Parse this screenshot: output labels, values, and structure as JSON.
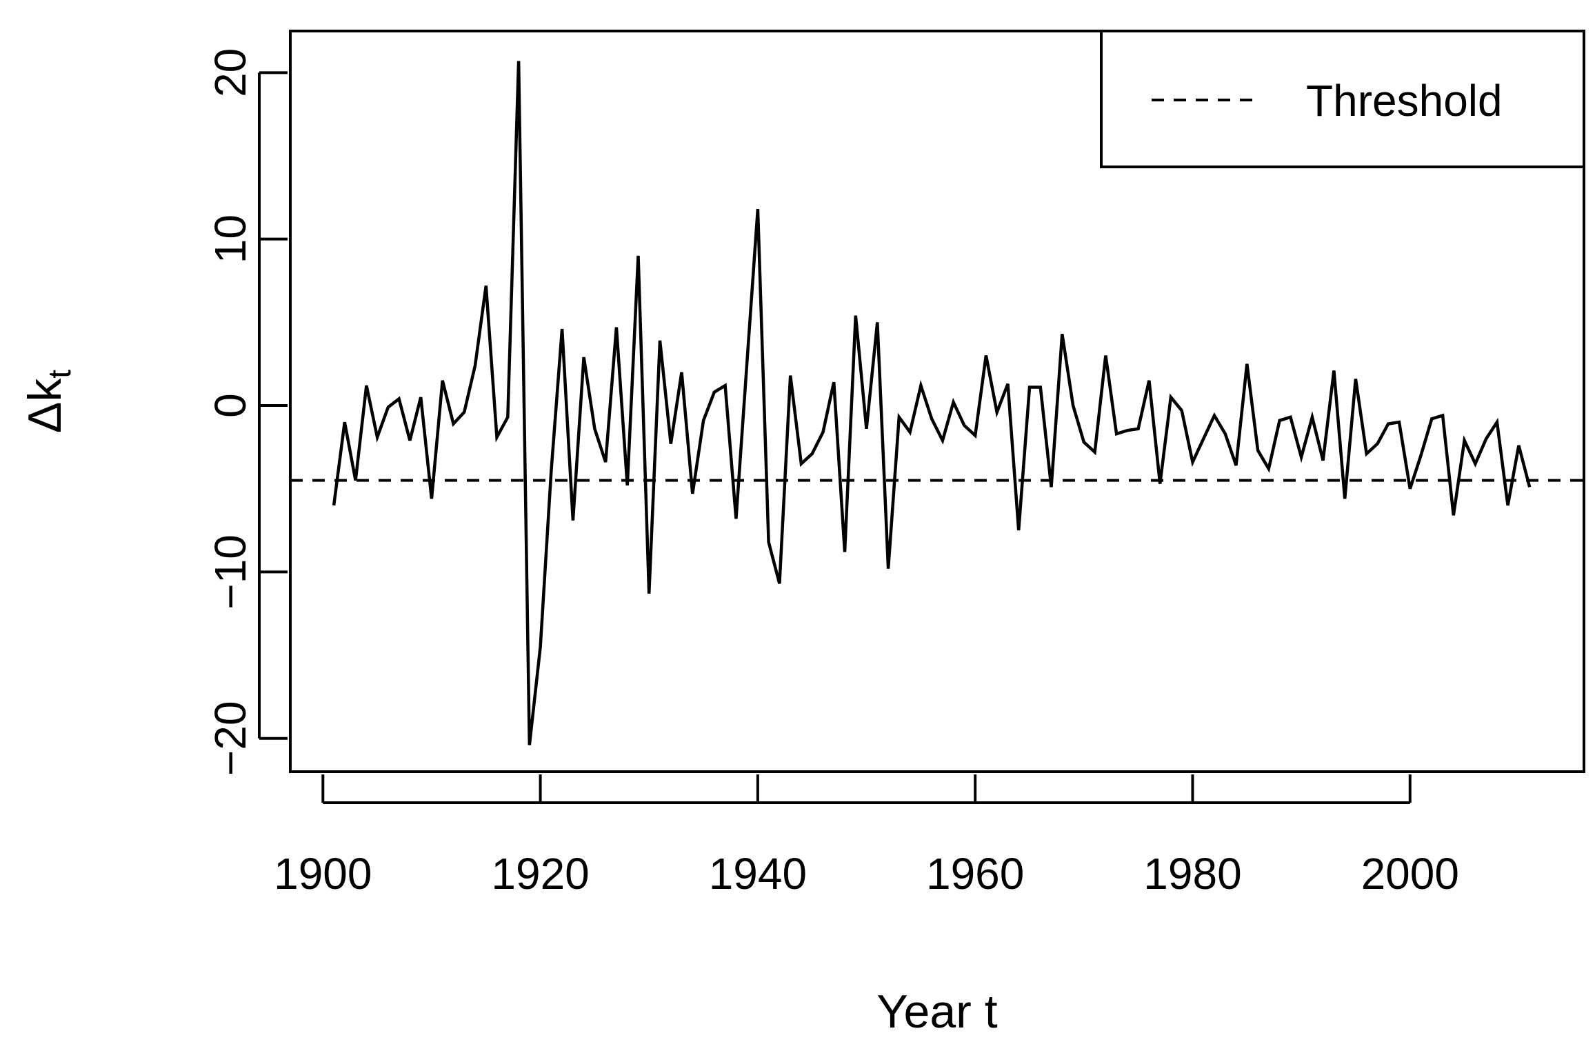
{
  "chart_data": {
    "type": "line",
    "xlabel": "Year t",
    "ylabel": "Δk",
    "ylabel_subscript": "t",
    "xlim": [
      1897,
      2016
    ],
    "ylim": [
      -22,
      22.5
    ],
    "x_ticks": [
      1900,
      1920,
      1940,
      1960,
      1980,
      2000
    ],
    "y_ticks": [
      -20,
      -10,
      0,
      10,
      20
    ],
    "x_tick_labels": [
      "1900",
      "1920",
      "1940",
      "1960",
      "1980",
      "2000"
    ],
    "y_tick_labels": [
      "−20",
      "−10",
      "0",
      "10",
      "20"
    ],
    "grid": false,
    "legend": {
      "position": "top-right",
      "entries": [
        {
          "label": "Threshold",
          "style": "dashed"
        }
      ]
    },
    "threshold": -4.5,
    "series": [
      {
        "x": [
          1901,
          1902,
          1903,
          1904,
          1905,
          1906,
          1907,
          1908,
          1909,
          1910,
          1911,
          1912,
          1913,
          1914,
          1915,
          1916,
          1917,
          1918,
          1919,
          1920,
          1921,
          1922,
          1923,
          1924,
          1925,
          1926,
          1927,
          1928,
          1929,
          1930,
          1931,
          1932,
          1933,
          1934,
          1935,
          1936,
          1937,
          1938,
          1939,
          1940,
          1941,
          1942,
          1943,
          1944,
          1945,
          1946,
          1947,
          1948,
          1949,
          1950,
          1951,
          1952,
          1953,
          1954,
          1955,
          1956,
          1957,
          1958,
          1959,
          1960,
          1961,
          1962,
          1963,
          1964,
          1965,
          1966,
          1967,
          1968,
          1969,
          1970,
          1971,
          1972,
          1973,
          1974,
          1975,
          1976,
          1977,
          1978,
          1979,
          1980,
          1981,
          1982,
          1983,
          1984,
          1985,
          1986,
          1987,
          1988,
          1989,
          1990,
          1991,
          1992,
          1993,
          1994,
          1995,
          1996,
          1997,
          1998,
          1999,
          2000,
          2001,
          2002,
          2003,
          2004,
          2005,
          2006,
          2007,
          2008,
          2009,
          2010,
          2011
        ],
        "values": [
          -6.0,
          -1.0,
          -4.5,
          1.2,
          -1.9,
          -0.1,
          0.4,
          -2.1,
          0.5,
          -5.6,
          1.5,
          -1.1,
          -0.4,
          2.4,
          7.2,
          -1.9,
          -0.7,
          20.7,
          -20.4,
          -14.5,
          -3.9,
          4.6,
          -6.9,
          2.9,
          -1.4,
          -3.4,
          4.7,
          -4.8,
          9.0,
          -11.3,
          3.9,
          -2.3,
          2.0,
          -5.3,
          -0.9,
          0.8,
          1.2,
          -6.8,
          2.5,
          11.8,
          -8.2,
          -10.7,
          1.8,
          -3.5,
          -2.9,
          -1.6,
          1.4,
          -8.8,
          5.4,
          -1.4,
          5.0,
          -9.8,
          -0.7,
          -1.6,
          1.2,
          -0.8,
          -2.1,
          0.2,
          -1.2,
          -1.8,
          3.0,
          -0.4,
          1.3,
          -7.5,
          1.1,
          1.1,
          -4.9,
          4.3,
          0.0,
          -2.2,
          -2.8,
          3.0,
          -1.7,
          -1.5,
          -1.4,
          1.5,
          -4.7,
          0.5,
          -0.3,
          -3.4,
          -2.0,
          -0.6,
          -1.7,
          -3.6,
          2.5,
          -2.7,
          -3.8,
          -0.9,
          -0.7,
          -3.1,
          -0.7,
          -3.3,
          2.1,
          -5.6,
          1.6,
          -2.9,
          -2.3,
          -1.1,
          -1.0,
          -5.0,
          -3.0,
          -0.8,
          -0.6,
          -6.6,
          -2.1,
          -3.5,
          -2.0,
          -1.0,
          -6.0,
          -2.4,
          -4.9
        ]
      }
    ]
  }
}
